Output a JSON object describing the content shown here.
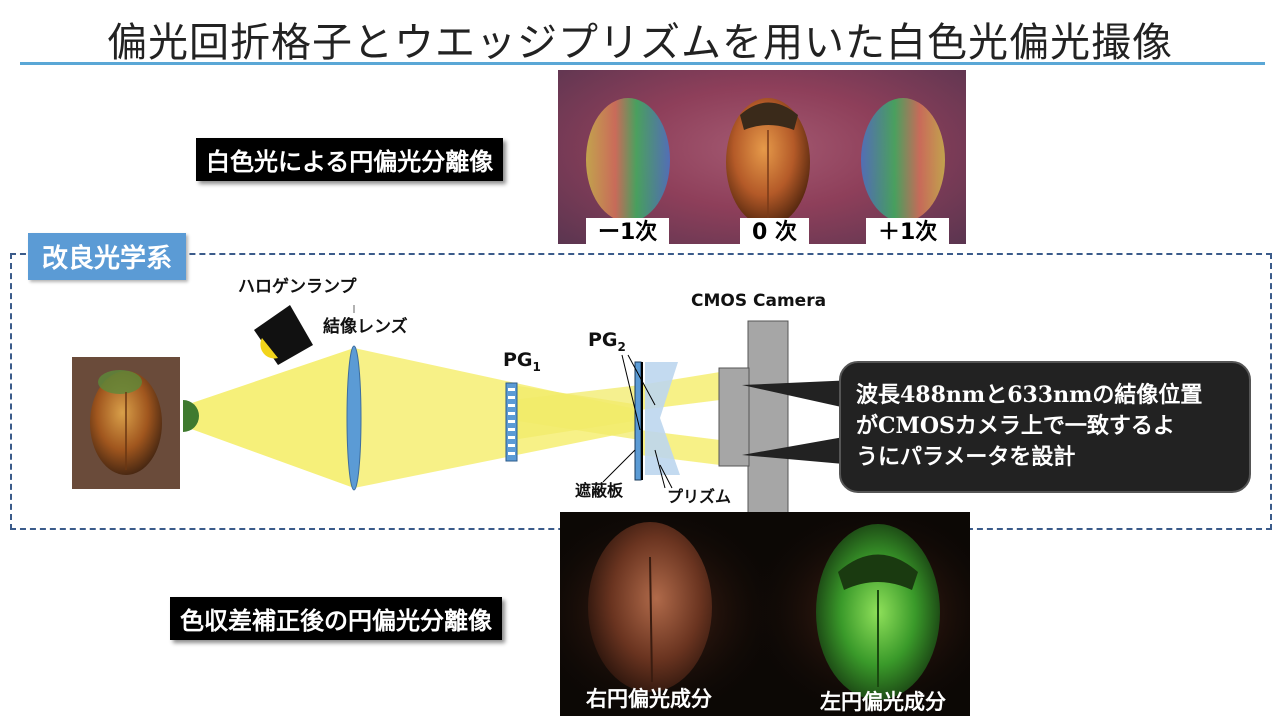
{
  "title": "偏光回折格子とウエッジプリズムを用いた白色光偏光撮像",
  "labels": {
    "white_light": "白色光による円偏光分離像",
    "corrected": "色収差補正後の円偏光分離像",
    "improved_system": "改良光学系"
  },
  "orders": {
    "minus1": "ー1次",
    "zero": "0 次",
    "plus1": "＋1次"
  },
  "components": {
    "halogen": "ハロゲンランプ",
    "lens": "結像レンズ",
    "pg1": "PG",
    "pg1_sub": "1",
    "pg2": "PG",
    "pg2_sub": "2",
    "camera": "CMOS Camera",
    "shield": "遮蔽板",
    "prism": "プリズム"
  },
  "callout": {
    "line1": "波長488nmと633nmの結像位置",
    "line2": "がCMOSカメラ上で一致するよ",
    "line3": "うにパラメータを設計"
  },
  "bottom_captions": {
    "right": "右円偏光成分",
    "left": "左円偏光成分"
  },
  "colors": {
    "accent": "#5b9bd5",
    "beam": "#f6f07a",
    "frame": "#3b5b8a"
  }
}
